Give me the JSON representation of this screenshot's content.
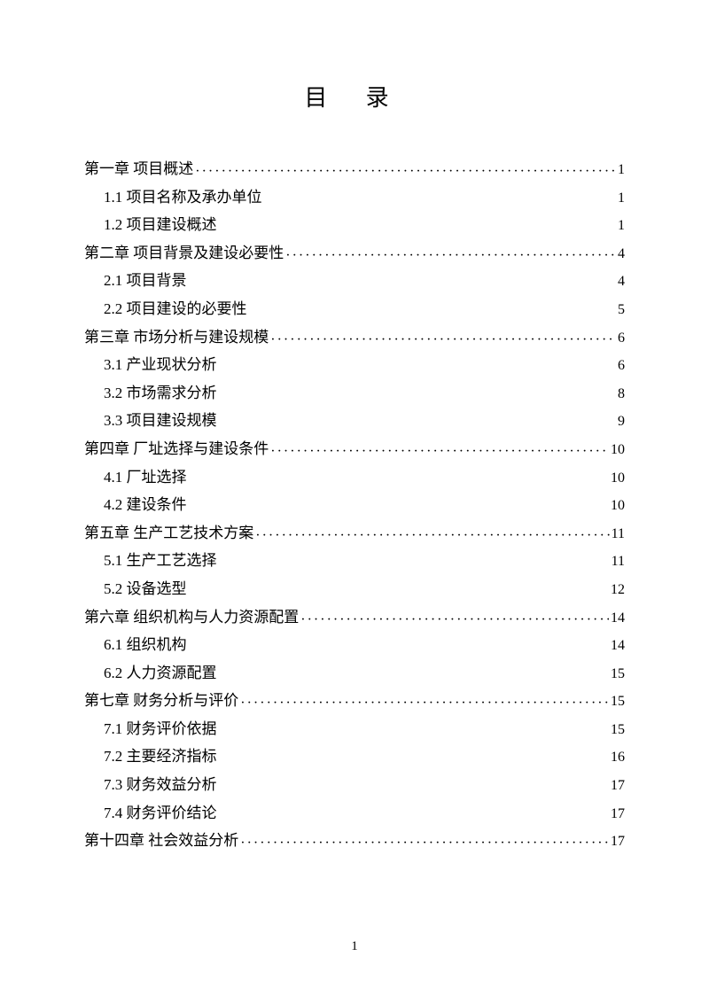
{
  "title": "目 录",
  "page_number": "1",
  "entries": [
    {
      "level": 1,
      "label": "第一章  项目概述 ",
      "page": "1",
      "leader": "mid"
    },
    {
      "level": 2,
      "label": "1.1  项目名称及承办单位",
      "page": "1",
      "leader": "small"
    },
    {
      "level": 2,
      "label": "1.2  项目建设概述",
      "page": "1",
      "leader": "small"
    },
    {
      "level": 1,
      "label": "第二章  项目背景及建设必要性",
      "page": "4",
      "leader": "mid"
    },
    {
      "level": 2,
      "label": "2.1  项目背景",
      "page": "4",
      "leader": "small"
    },
    {
      "level": 2,
      "label": "2.2  项目建设的必要性",
      "page": "5",
      "leader": "small"
    },
    {
      "level": 1,
      "label": "第三章  市场分析与建设规模",
      "page": "6",
      "leader": "mid"
    },
    {
      "level": 2,
      "label": "3.1 产业现状分析",
      "page": "6",
      "leader": "small"
    },
    {
      "level": 2,
      "label": "3.2 市场需求分析",
      "page": "8",
      "leader": "small"
    },
    {
      "level": 2,
      "label": "3.3 项目建设规模",
      "page": "9",
      "leader": "small"
    },
    {
      "level": 1,
      "label": "第四章  厂址选择与建设条件",
      "page": "10",
      "leader": "mid"
    },
    {
      "level": 2,
      "label": "4.1  厂址选择",
      "page": "10",
      "leader": "small"
    },
    {
      "level": 2,
      "label": "4.2  建设条件",
      "page": "10",
      "leader": "small"
    },
    {
      "level": 1,
      "label": "第五章  生产工艺技术方案",
      "page": "11",
      "leader": "mid"
    },
    {
      "level": 2,
      "label": "5.1  生产工艺选择",
      "page": "11",
      "leader": "small"
    },
    {
      "level": 2,
      "label": "5.2  设备选型",
      "page": "12",
      "leader": "small"
    },
    {
      "level": 1,
      "label": "第六章  组织机构与人力资源配置",
      "page": "14",
      "leader": "mid"
    },
    {
      "level": 2,
      "label": "6.1  组织机构",
      "page": "14",
      "leader": "small"
    },
    {
      "level": 2,
      "label": "6.2  人力资源配置",
      "page": "15",
      "leader": "small"
    },
    {
      "level": 1,
      "label": "第七章  财务分析与评价",
      "page": "15",
      "leader": "mid"
    },
    {
      "level": 2,
      "label": "7.1  财务评价依据",
      "page": "15",
      "leader": "small"
    },
    {
      "level": 2,
      "label": "7.2  主要经济指标",
      "page": "16",
      "leader": "small"
    },
    {
      "level": 2,
      "label": "7.3  财务效益分析",
      "page": "17",
      "leader": "small"
    },
    {
      "level": 2,
      "label": "7.4  财务评价结论",
      "page": "17",
      "leader": "small"
    },
    {
      "level": 1,
      "label": "第十四章  社会效益分析",
      "page": "17",
      "leader": "mid"
    }
  ]
}
